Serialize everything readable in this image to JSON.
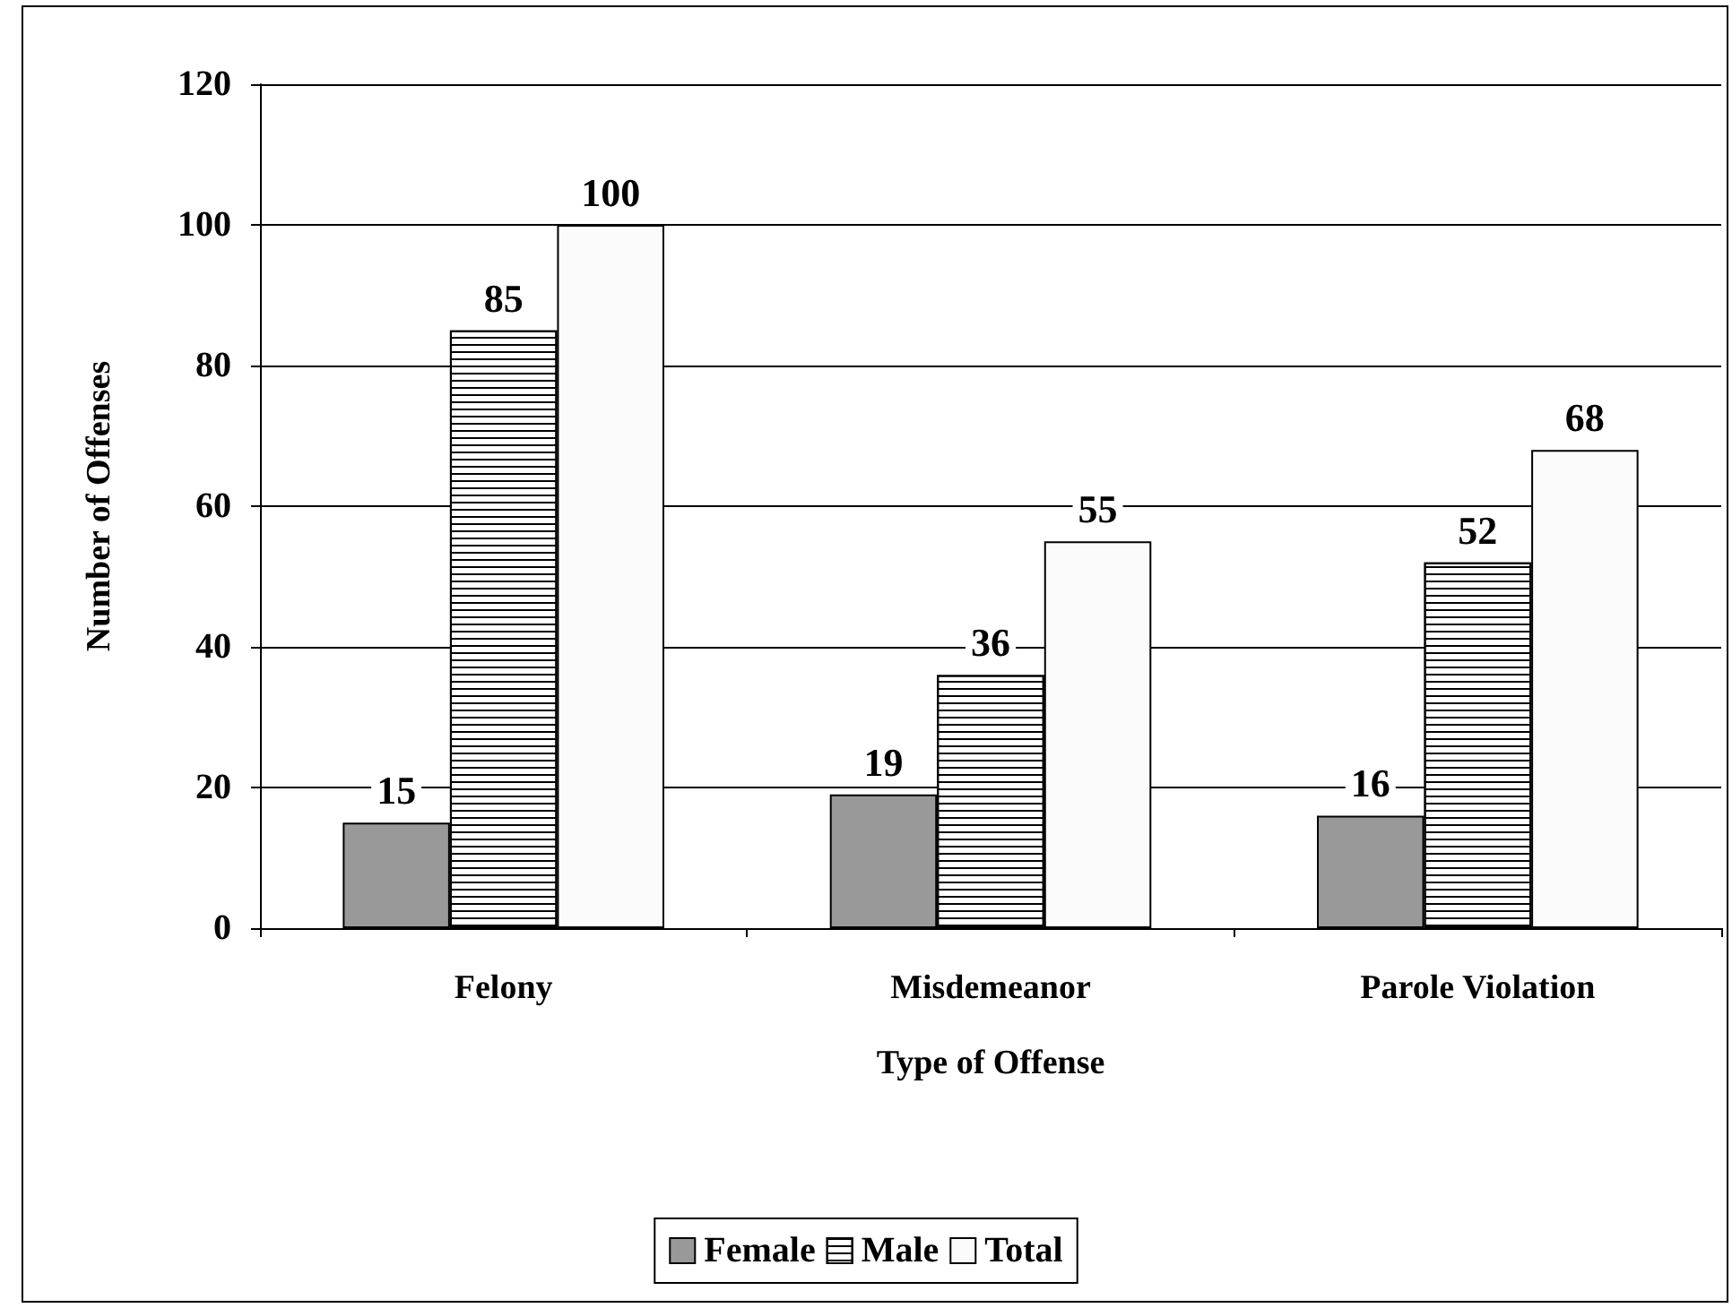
{
  "chart_data": {
    "type": "bar",
    "xlabel": "Type of Offense",
    "ylabel": "Number of Offenses",
    "categories": [
      "Felony",
      "Misdemeanor",
      "Parole Violation"
    ],
    "series": [
      {
        "name": "Female",
        "color": "#999999",
        "values": [
          15,
          19,
          16
        ]
      },
      {
        "name": "Male",
        "color": "#ffffff",
        "values": [
          85,
          36,
          52
        ]
      },
      {
        "name": "Total",
        "color": "#fbfbfb",
        "values": [
          100,
          55,
          68
        ]
      }
    ],
    "ylim": [
      0,
      120
    ],
    "yticks": [
      0,
      20,
      40,
      60,
      80,
      100,
      120
    ],
    "grid": "y",
    "legend": "bottom",
    "data_labels": true
  }
}
